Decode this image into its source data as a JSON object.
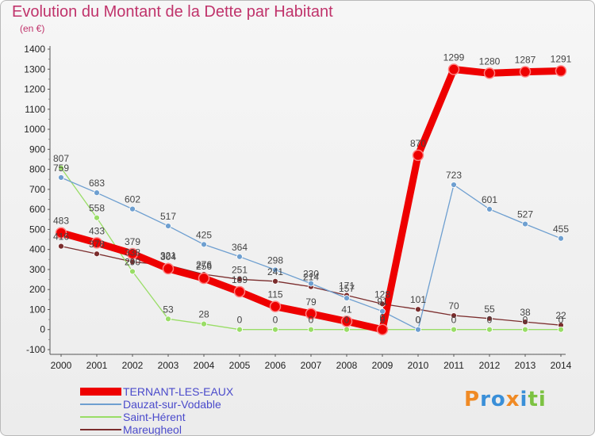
{
  "header": {
    "title": "Evolution du Montant de la Dette par Habitant",
    "subtitle": "(en €)"
  },
  "logo": {
    "text": "Proxiti"
  },
  "chart_data": {
    "type": "line",
    "title": "Evolution du Montant de la Dette par Habitant",
    "subtitle": "(en €)",
    "xlabel": "",
    "ylabel": "",
    "ylim": [
      -100,
      1400
    ],
    "yticks": [
      -100,
      0,
      100,
      200,
      300,
      400,
      500,
      600,
      700,
      800,
      900,
      1000,
      1100,
      1200,
      1300,
      1400
    ],
    "grid": false,
    "legend_position": "bottom-left",
    "x": [
      "2000",
      "2001",
      "2002",
      "2003",
      "2004",
      "2005",
      "2006",
      "2007",
      "2008",
      "2009",
      "2010",
      "2011",
      "2012",
      "2013",
      "2014"
    ],
    "series": [
      {
        "name": "TERNANT-LES-EAUX",
        "color": "#ee0000",
        "values": [
          483,
          433,
          379,
          304,
          256,
          189,
          115,
          79,
          41,
          0,
          870,
          1299,
          1280,
          1287,
          1291
        ]
      },
      {
        "name": "Dauzat-sur-Vodable",
        "color": "#6e9fd0",
        "values": [
          759,
          683,
          602,
          517,
          425,
          364,
          298,
          230,
          157,
          91,
          0,
          723,
          601,
          527,
          455
        ]
      },
      {
        "name": "Saint-Hérent",
        "color": "#99dd66",
        "values": [
          807,
          558,
          290,
          53,
          28,
          0,
          0,
          0,
          0,
          0,
          0,
          0,
          0,
          0,
          0
        ]
      },
      {
        "name": "Mareugheol",
        "color": "#7b2d2d",
        "values": [
          416,
          378,
          338,
          321,
          276,
          251,
          241,
          214,
          171,
          128,
          101,
          70,
          55,
          38,
          22
        ]
      }
    ]
  }
}
